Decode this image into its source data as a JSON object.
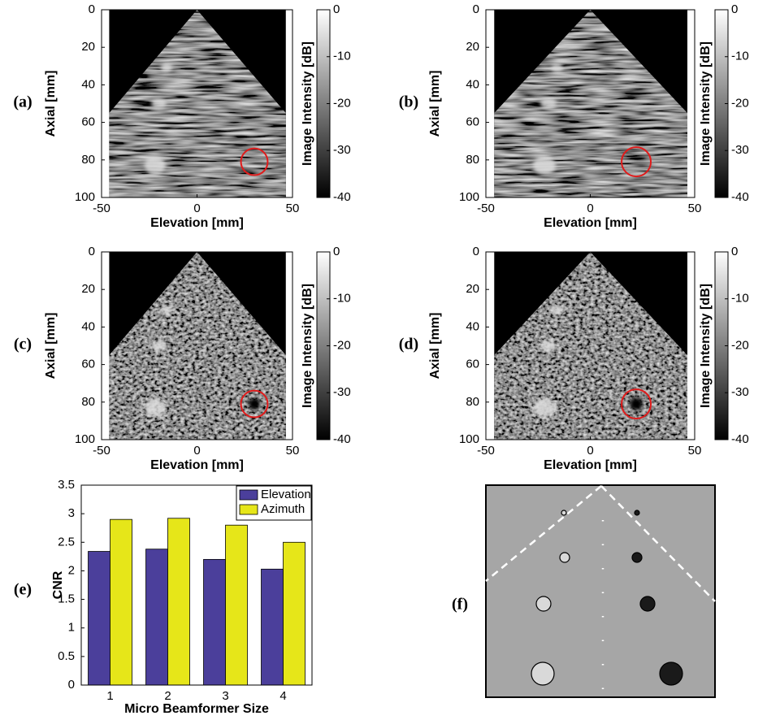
{
  "chart_data": [
    {
      "type": "image",
      "panel_label": "(a)",
      "xlabel": "Elevation [mm]",
      "ylabel": "Axial [mm]",
      "xlim": [
        -50,
        50
      ],
      "xticks": [
        -50,
        0,
        50
      ],
      "ylim": [
        100,
        0
      ],
      "yticks": [
        0,
        20,
        40,
        60,
        80,
        100
      ],
      "colorbar": {
        "label": "Image Intensity [dB]",
        "lim": [
          -40,
          0
        ],
        "ticks": [
          0,
          -10,
          -20,
          -30,
          -40
        ]
      }
    },
    {
      "type": "image",
      "panel_label": "(b)",
      "xlabel": "Elevation [mm]",
      "ylabel": "Axial [mm]",
      "xlim": [
        -50,
        50
      ],
      "xticks": [
        -50,
        0,
        50
      ],
      "ylim": [
        100,
        0
      ],
      "yticks": [
        0,
        20,
        40,
        60,
        80,
        100
      ],
      "colorbar": {
        "label": "Image Intensity [dB]",
        "lim": [
          -40,
          0
        ],
        "ticks": [
          0,
          -10,
          -20,
          -30,
          -40
        ]
      }
    },
    {
      "type": "image",
      "panel_label": "(c)",
      "xlabel": "Elevation [mm]",
      "ylabel": "Axial [mm]",
      "xlim": [
        -50,
        50
      ],
      "xticks": [
        -50,
        0,
        50
      ],
      "ylim": [
        100,
        0
      ],
      "yticks": [
        0,
        20,
        40,
        60,
        80,
        100
      ],
      "colorbar": {
        "label": "Image Intensity [dB]",
        "lim": [
          -40,
          0
        ],
        "ticks": [
          0,
          -10,
          -20,
          -30,
          -40
        ]
      }
    },
    {
      "type": "image",
      "panel_label": "(d)",
      "xlabel": "Elevation [mm]",
      "ylabel": "Axial [mm]",
      "xlim": [
        -50,
        50
      ],
      "xticks": [
        -50,
        0,
        50
      ],
      "ylim": [
        100,
        0
      ],
      "yticks": [
        0,
        20,
        40,
        60,
        80,
        100
      ],
      "colorbar": {
        "label": "Image Intensity [dB]",
        "lim": [
          -40,
          0
        ],
        "ticks": [
          0,
          -10,
          -20,
          -30,
          -40
        ]
      }
    },
    {
      "type": "bar",
      "panel_label": "(e)",
      "xlabel": "Micro Beamformer Size",
      "ylabel": "CNR",
      "categories": [
        "1",
        "2",
        "3",
        "4"
      ],
      "series": [
        {
          "name": "Elevation",
          "color": "#4b3f9b",
          "values": [
            2.34,
            2.38,
            2.2,
            2.03
          ]
        },
        {
          "name": "Azimuth",
          "color": "#e6e619",
          "values": [
            2.9,
            2.92,
            2.8,
            2.5
          ]
        }
      ],
      "ylim": [
        0,
        3.5
      ],
      "yticks": [
        0,
        0.5,
        1,
        1.5,
        2,
        2.5,
        3,
        3.5
      ],
      "legend": "upper right"
    }
  ],
  "diagram": {
    "panel_label": "(f)"
  }
}
